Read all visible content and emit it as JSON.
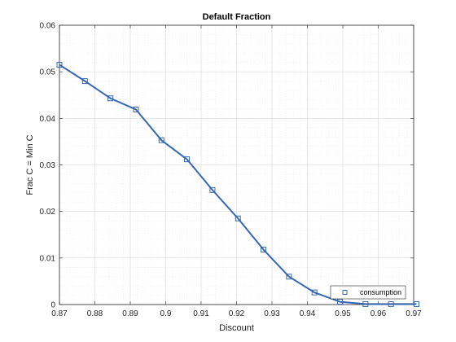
{
  "chart_data": {
    "type": "line",
    "title": "Default Fraction",
    "xlabel": "Discount",
    "ylabel": "Frac C = Min C",
    "xlim": [
      0.87,
      0.97
    ],
    "ylim": [
      0,
      0.06
    ],
    "xticks": [
      0.87,
      0.88,
      0.89,
      0.9,
      0.91,
      0.92,
      0.93,
      0.94,
      0.95,
      0.96,
      0.97
    ],
    "xtick_labels": [
      "0.87",
      "0.88",
      "0.89",
      "0.9",
      "0.91",
      "0.92",
      "0.93",
      "0.94",
      "0.95",
      "0.96",
      "0.97"
    ],
    "yticks": [
      0,
      0.01,
      0.02,
      0.03,
      0.04,
      0.05,
      0.06
    ],
    "ytick_labels": [
      "0",
      "0.01",
      "0.02",
      "0.03",
      "0.04",
      "0.05",
      "0.06"
    ],
    "grid": true,
    "minor_grid": true,
    "legend_position": "bottom-right",
    "series": [
      {
        "name": "consumption",
        "color": "#3567B3",
        "marker": "square",
        "x": [
          0.87,
          0.8772,
          0.8844,
          0.8916,
          0.8988,
          0.906,
          0.9132,
          0.9204,
          0.9276,
          0.9348,
          0.942,
          0.9492,
          0.9564,
          0.9636,
          0.9708
        ],
        "y": [
          0.0515,
          0.048,
          0.0443,
          0.0419,
          0.0353,
          0.0312,
          0.0246,
          0.0185,
          0.0118,
          0.006,
          0.0026,
          0.0006,
          0.0001,
          0.0001,
          0.0001
        ]
      }
    ]
  }
}
